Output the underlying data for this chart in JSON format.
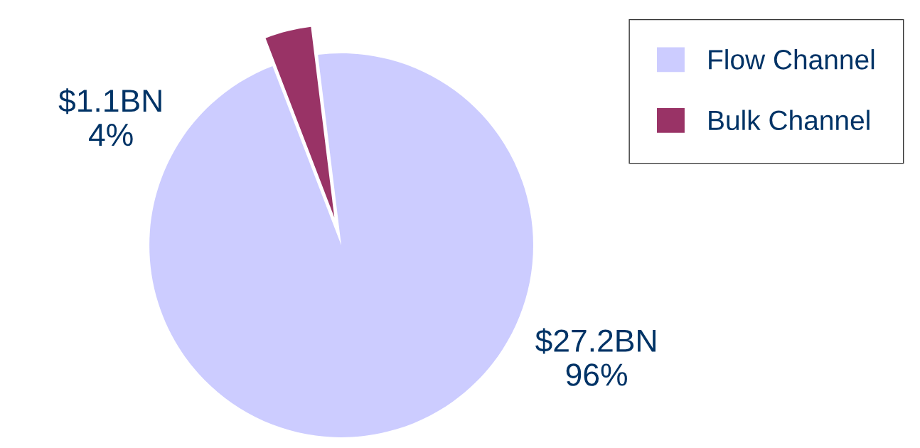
{
  "chart_data": {
    "type": "pie",
    "categories": [
      "Flow Channel",
      "Bulk Channel"
    ],
    "values": [
      27.2,
      1.1
    ],
    "colors": [
      "#ccccff",
      "#993366"
    ],
    "value_labels": [
      "$27.2BN\n96%",
      "$1.1BN\n4%"
    ],
    "legend": "top right"
  }
}
